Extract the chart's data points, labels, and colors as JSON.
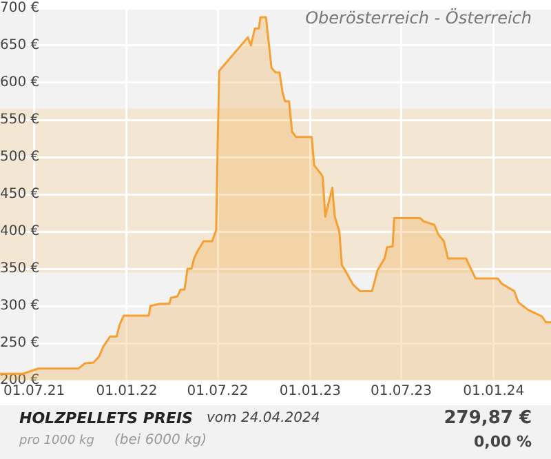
{
  "chart_data": {
    "type": "area",
    "title": "HOLZPELLETS PREIS",
    "subtitle": "Oberösterreich - Österreich",
    "annotations": [
      "vom 24.04.2024",
      "pro 1000 kg",
      "(bei 6000 kg)",
      "279,87 €",
      "0,00 %"
    ],
    "x": [
      "2021-04-24",
      "2021-06-09",
      "2021-07-09",
      "2021-09-27",
      "2021-10-10",
      "2021-10-27",
      "2021-11-07",
      "2021-11-15",
      "2021-11-29",
      "2021-12-12",
      "2021-12-18",
      "2021-12-26",
      "2022-02-14",
      "2022-02-17",
      "2022-03-08",
      "2022-03-27",
      "2022-03-30",
      "2022-04-12",
      "2022-04-18",
      "2022-04-26",
      "2022-05-02",
      "2022-05-10",
      "2022-05-15",
      "2022-05-23",
      "2022-06-03",
      "2022-06-20",
      "2022-06-28",
      "2022-07-01",
      "2022-07-04",
      "2022-08-30",
      "2022-09-05",
      "2022-09-13",
      "2022-09-21",
      "2022-09-24",
      "2022-10-05",
      "2022-10-16",
      "2022-10-24",
      "2022-11-01",
      "2022-11-07",
      "2022-11-12",
      "2022-11-20",
      "2022-11-26",
      "2022-12-04",
      "2023-01-04",
      "2023-01-09",
      "2023-01-23",
      "2023-01-26",
      "2023-01-31",
      "2023-02-14",
      "2023-02-19",
      "2023-02-28",
      "2023-03-05",
      "2023-03-13",
      "2023-03-27",
      "2023-04-10",
      "2023-05-04",
      "2023-05-15",
      "2023-05-29",
      "2023-06-03",
      "2023-06-14",
      "2023-06-17",
      "2023-08-08",
      "2023-08-14",
      "2023-09-05",
      "2023-09-13",
      "2023-09-24",
      "2023-10-02",
      "2023-11-07",
      "2023-11-18",
      "2023-11-26",
      "2024-01-09",
      "2024-01-17",
      "2024-02-11",
      "2024-02-19",
      "2024-03-09",
      "2024-04-06",
      "2024-04-14",
      "2024-04-24"
    ],
    "series": [
      {
        "color": "#f5a033",
        "values": [
          209,
          209,
          216,
          216,
          223,
          224,
          232,
          245,
          259,
          259,
          275,
          287,
          287,
          300,
          303,
          303,
          311,
          313,
          322,
          322,
          350,
          350,
          364,
          375,
          387,
          387,
          402,
          518,
          616,
          661,
          650,
          673,
          673,
          688,
          688,
          620,
          614,
          614,
          587,
          575,
          575,
          534,
          527,
          527,
          489,
          477,
          473,
          420,
          459,
          420,
          400,
          355,
          346,
          329,
          320,
          320,
          348,
          364,
          379,
          380,
          418,
          418,
          414,
          409,
          396,
          387,
          364,
          364,
          348,
          337,
          337,
          330,
          320,
          305,
          295,
          286,
          278,
          278
        ]
      }
    ],
    "xlim": [
      "2021-04-24",
      "2024-04-24"
    ],
    "xticks": [
      {
        "value": "2021-07-01",
        "label": "01.07.21"
      },
      {
        "value": "2022-01-01",
        "label": "01.01.22"
      },
      {
        "value": "2022-07-01",
        "label": "01.07.22"
      },
      {
        "value": "2023-01-01",
        "label": "01.01.23"
      },
      {
        "value": "2023-07-01",
        "label": "01.07.23"
      },
      {
        "value": "2024-01-01",
        "label": "01.01.24"
      }
    ],
    "ylim": [
      200,
      700
    ],
    "yticks": [
      {
        "value": 200,
        "label": "200 €"
      },
      {
        "value": 250,
        "label": "250 €"
      },
      {
        "value": 300,
        "label": "300 €"
      },
      {
        "value": 350,
        "label": "350 €"
      },
      {
        "value": 400,
        "label": "400 €"
      },
      {
        "value": 450,
        "label": "450 €"
      },
      {
        "value": 500,
        "label": "500 €"
      },
      {
        "value": 550,
        "label": "550 €"
      },
      {
        "value": 600,
        "label": "600 €"
      },
      {
        "value": 650,
        "label": "650 €"
      },
      {
        "value": 700,
        "label": "700 €"
      }
    ],
    "grid": true,
    "legend": false,
    "bands": [
      {
        "axis": "y",
        "from": 345,
        "to": 565,
        "color": "#f3e6d2"
      }
    ]
  }
}
